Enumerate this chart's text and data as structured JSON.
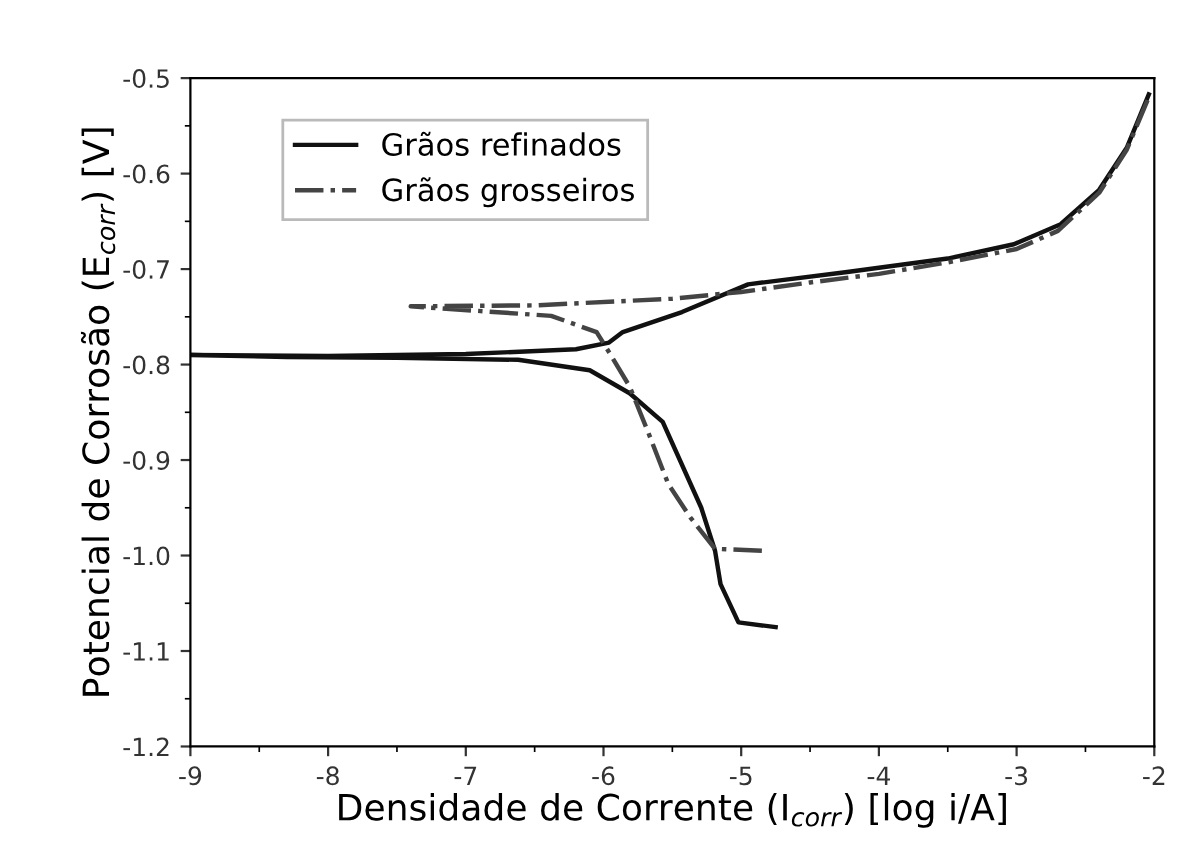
{
  "chart_data": {
    "type": "line",
    "xlabel": "Densidade de Corrente (I$_{corr}$) [log i/A]",
    "ylabel": "Potencial de Corrosão (E$_{corr}$) [V]",
    "xlim": [
      -9,
      -2
    ],
    "xticks": [
      -9,
      -8,
      -7,
      -6,
      -5,
      -4,
      -3,
      -2
    ],
    "ylim": [
      -1.2,
      -0.5
    ],
    "yticks": [
      -1.2,
      -1.1,
      {
        "value": -1,
        "label": "-1.0"
      },
      -0.9,
      -0.8,
      -0.7,
      -0.6,
      -0.5
    ],
    "grid": false,
    "legend": "top left",
    "marker": "none",
    "series": [
      {
        "name": "Grãos refinados",
        "color": "#111111",
        "line_style": "solid",
        "x": [
          -4.75,
          -5.02,
          -5.15,
          -5.19,
          -5.29,
          -5.57,
          -5.81,
          -6.1,
          -6.62,
          -7.5,
          -8.3,
          -9.0,
          -8.0,
          -7.0,
          -6.2,
          -5.96,
          -5.86,
          -5.43,
          -4.95,
          -4.23,
          -3.5,
          -3.02,
          -2.68,
          -2.4,
          -2.2,
          -2.04
        ],
        "values": [
          -1.075,
          -1.07,
          -1.03,
          -0.995,
          -0.95,
          -0.86,
          -0.83,
          -0.806,
          -0.795,
          -0.793,
          -0.792,
          -0.79,
          -0.791,
          -0.789,
          -0.784,
          -0.777,
          -0.766,
          -0.745,
          -0.716,
          -0.703,
          -0.689,
          -0.674,
          -0.653,
          -0.617,
          -0.573,
          -0.517
        ]
      },
      {
        "name": "Grãos grosseiros",
        "color": "#444444",
        "line_style": "dashdot",
        "x": [
          -4.85,
          -5.19,
          -5.37,
          -5.53,
          -5.67,
          -5.81,
          -5.96,
          -6.05,
          -6.38,
          -7.4,
          -6.5,
          -5.5,
          -5.0,
          -4.5,
          -4.0,
          -3.5,
          -3.0,
          -2.7,
          -2.4,
          -2.2,
          -2.04
        ],
        "values": [
          -0.995,
          -0.993,
          -0.96,
          -0.925,
          -0.873,
          -0.823,
          -0.787,
          -0.766,
          -0.749,
          -0.739,
          -0.738,
          -0.731,
          -0.724,
          -0.714,
          -0.705,
          -0.693,
          -0.679,
          -0.66,
          -0.62,
          -0.575,
          -0.52
        ]
      }
    ]
  }
}
